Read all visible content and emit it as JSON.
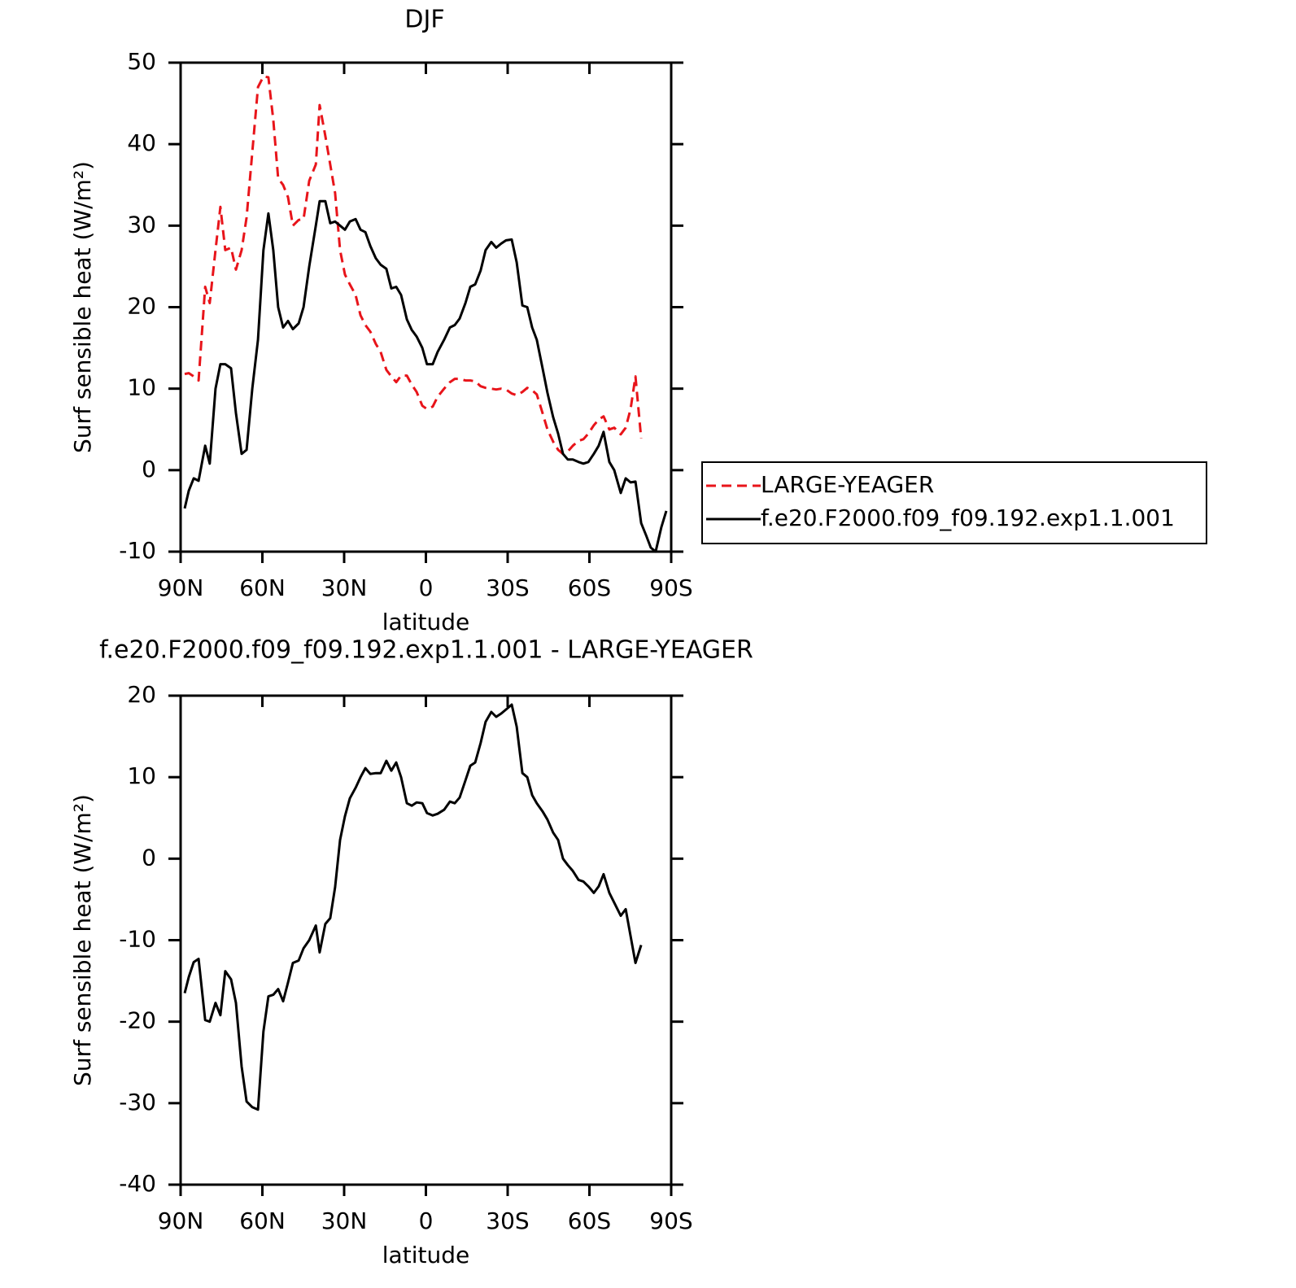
{
  "chart_data": [
    {
      "type": "line",
      "title": "DJF",
      "x_label": "latitude",
      "y_label": "Surf sensible heat (W/m²)",
      "x": [
        88.5,
        87,
        85.2,
        83.4,
        81,
        79.3,
        77.2,
        75.4,
        73.6,
        71.5,
        69.7,
        67.6,
        65.8,
        63.7,
        61.6,
        59.6,
        57.8,
        56,
        54.2,
        52.4,
        50.6,
        48.8,
        46.7,
        44.9,
        42.8,
        40.4,
        39,
        36.9,
        35.1,
        33.3,
        31.5,
        29.7,
        27.9,
        25.8,
        24,
        22.2,
        20.4,
        18.4,
        16.6,
        14.5,
        12.7,
        10.9,
        9.1,
        7,
        5.2,
        3.4,
        1.3,
        -0.4,
        -2.5,
        -4.3,
        -6.7,
        -8.8,
        -10.6,
        -12.4,
        -14.5,
        -16.3,
        -18.1,
        -20.1,
        -21.9,
        -24,
        -25.8,
        -27.6,
        -29.4,
        -31.5,
        -33.3,
        -35.4,
        -37.2,
        -39,
        -40.7,
        -42.8,
        -44.6,
        -46.7,
        -48.5,
        -50.3,
        -52.1,
        -53.9,
        -56,
        -57.8,
        -59.6,
        -61.6,
        -63.4,
        -65.2,
        -67.3,
        -69.1,
        -71.5,
        -73.3,
        -75.1,
        -76.9,
        -79,
        -80.8,
        -82.5,
        -84.3,
        -86.4,
        -88.2
      ],
      "xlim": [
        90,
        -90
      ],
      "xticks": [
        {
          "value": 90,
          "label": "90N"
        },
        {
          "value": 60,
          "label": "60N"
        },
        {
          "value": 30,
          "label": "30N"
        },
        0,
        {
          "value": -30,
          "label": "30S"
        },
        {
          "value": -60,
          "label": "60S"
        },
        {
          "value": -90,
          "label": "90S"
        }
      ],
      "ylim": [
        -10,
        50
      ],
      "yticks": [
        -10,
        0,
        10,
        20,
        30,
        40,
        50
      ],
      "legend": "right",
      "series": [
        {
          "name": "LARGE-YEAGER",
          "color": "#e8141a",
          "style": "dashed",
          "values": [
            11.8,
            11.9,
            11.5,
            11,
            22.5,
            20.5,
            27,
            32.3,
            27,
            27.3,
            24.6,
            27,
            31,
            39,
            47,
            48.3,
            48.2,
            43,
            35.8,
            35,
            33.5,
            30,
            30.7,
            30.8,
            35.5,
            37.5,
            44.8,
            41,
            37.5,
            34,
            27,
            24,
            22.8,
            21.5,
            19,
            17.8,
            17,
            15.5,
            14.5,
            12.3,
            11.5,
            10.8,
            11.6,
            11.6,
            10.5,
            9.6,
            7.9,
            7.5,
            7.8,
            9,
            10,
            10.8,
            11.2,
            11.2,
            11,
            11,
            10.9,
            10.3,
            10.1,
            10,
            9.9,
            10,
            9.9,
            9.4,
            9.2,
            9.6,
            10.1,
            9.8,
            9.3,
            7,
            5,
            3.5,
            2.5,
            2,
            2.3,
            3,
            3.6,
            3.8,
            4.5,
            5.5,
            6.2,
            6.6,
            5,
            5.2,
            4.4,
            5.2,
            7.5,
            11.5,
            3.9,
            null,
            null,
            null,
            null,
            null
          ]
        },
        {
          "name": "f.e20.F2000.f09_f09.192.exp1.1.001",
          "color": "#000000",
          "style": "solid",
          "values": [
            -4.7,
            -2.5,
            -1,
            -1.3,
            3,
            0.8,
            10,
            13,
            13,
            12.5,
            7,
            2,
            2.5,
            10,
            16,
            27,
            31.5,
            27,
            20,
            17.5,
            18.3,
            17.3,
            18,
            20,
            25,
            30,
            33,
            33,
            30.3,
            30.5,
            30,
            29.5,
            30.5,
            30.8,
            29.5,
            29.2,
            27.5,
            26,
            25.2,
            24.7,
            22.3,
            22.5,
            21.5,
            18.5,
            17.2,
            16.4,
            15,
            13,
            13,
            14.5,
            16,
            17.5,
            17.8,
            18.6,
            20.5,
            22.5,
            22.8,
            24.5,
            27,
            28,
            27.3,
            27.8,
            28.2,
            28.3,
            25.5,
            20.2,
            20,
            17.5,
            16,
            12.5,
            9.5,
            6.5,
            4.5,
            2,
            1.3,
            1.3,
            1,
            0.8,
            1,
            2,
            3,
            4.7,
            1,
            0,
            -2.8,
            -1,
            -1.5,
            -1.4,
            -6.5,
            -8,
            -9.5,
            -10,
            -7,
            -5
          ]
        }
      ]
    },
    {
      "type": "line",
      "title": "f.e20.F2000.f09_f09.192.exp1.1.001 - LARGE-YEAGER",
      "x_label": "latitude",
      "y_label": "Surf sensible heat (W/m²)",
      "x": [
        88.5,
        87,
        85.2,
        83.4,
        81,
        79.3,
        77.2,
        75.4,
        73.6,
        71.5,
        69.7,
        67.6,
        65.8,
        63.7,
        61.6,
        59.6,
        57.8,
        56,
        54.2,
        52.4,
        50.6,
        48.8,
        46.7,
        44.9,
        42.8,
        40.4,
        39,
        36.9,
        35.1,
        33.3,
        31.5,
        29.7,
        27.9,
        25.8,
        24,
        22.2,
        20.4,
        18.4,
        16.6,
        14.5,
        12.7,
        10.9,
        9.1,
        7,
        5.2,
        3.4,
        1.3,
        -0.4,
        -2.5,
        -4.3,
        -6.7,
        -8.8,
        -10.6,
        -12.4,
        -14.5,
        -16.3,
        -18.1,
        -20.1,
        -21.9,
        -24,
        -25.8,
        -27.6,
        -29.4,
        -31.5,
        -33.3,
        -35.4,
        -37.2,
        -39,
        -40.7,
        -42.8,
        -44.6,
        -46.7,
        -48.5,
        -50.3,
        -52.1,
        -53.9,
        -56,
        -57.8,
        -59.6,
        -61.6,
        -63.4,
        -65.2,
        -67.3,
        -69.1,
        -71.5,
        -73.3,
        -75.1,
        -76.9,
        -79,
        -80.8,
        -82.5,
        -84.3,
        -86.4,
        -88.2
      ],
      "xlim": [
        90,
        -90
      ],
      "xticks": [
        {
          "value": 90,
          "label": "90N"
        },
        {
          "value": 60,
          "label": "60N"
        },
        {
          "value": 30,
          "label": "30N"
        },
        0,
        {
          "value": -30,
          "label": "30S"
        },
        {
          "value": -60,
          "label": "60S"
        },
        {
          "value": -90,
          "label": "90S"
        }
      ],
      "ylim": [
        -40,
        20
      ],
      "yticks": [
        -40,
        -30,
        -20,
        -10,
        0,
        10,
        20
      ],
      "color": "#000000",
      "values": [
        -16.5,
        -14.5,
        -12.7,
        -12.3,
        -19.8,
        -20,
        -17.7,
        -19.2,
        -13.8,
        -14.8,
        -17.7,
        -25.5,
        -29.8,
        -30.5,
        -30.8,
        -21.2,
        -16.9,
        -16.7,
        -16,
        -17.5,
        -15.2,
        -12.8,
        -12.5,
        -11,
        -10,
        -8.2,
        -11.5,
        -8,
        -7.3,
        -3.5,
        2.3,
        5.2,
        7.4,
        8.7,
        10,
        11.1,
        10.4,
        10.5,
        10.5,
        12,
        10.8,
        11.8,
        10,
        6.8,
        6.5,
        6.9,
        6.8,
        5.6,
        5.3,
        5.5,
        6,
        7,
        6.8,
        7.5,
        9.6,
        11.4,
        11.8,
        14.2,
        16.8,
        18,
        17.4,
        17.8,
        18.3,
        18.9,
        16.2,
        10.5,
        10,
        7.8,
        6.8,
        5.8,
        4.8,
        3.2,
        2.3,
        0,
        -0.8,
        -1.5,
        -2.6,
        -2.8,
        -3.4,
        -4.2,
        -3.4,
        -1.9,
        -4.2,
        -5.4,
        -7,
        -6.2,
        -9.5,
        -12.8,
        -10.6,
        null,
        null,
        null,
        null,
        null
      ]
    }
  ]
}
